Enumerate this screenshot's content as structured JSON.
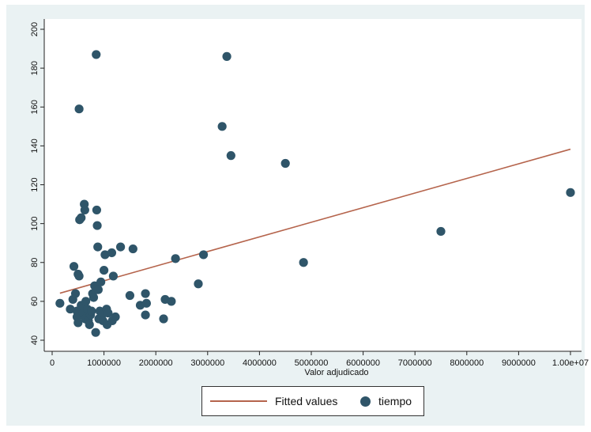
{
  "chart_data": {
    "type": "scatter",
    "title": "",
    "xlabel": "Valor adjudicado",
    "ylabel": "",
    "xlim": [
      0,
      10000000
    ],
    "ylim": [
      40,
      200
    ],
    "x_ticks": [
      {
        "value": 0,
        "label": "0"
      },
      {
        "value": 1000000,
        "label": "1000000"
      },
      {
        "value": 2000000,
        "label": "2000000"
      },
      {
        "value": 3000000,
        "label": "3000000"
      },
      {
        "value": 4000000,
        "label": "4000000"
      },
      {
        "value": 5000000,
        "label": "5000000"
      },
      {
        "value": 6000000,
        "label": "6000000"
      },
      {
        "value": 7000000,
        "label": "7000000"
      },
      {
        "value": 8000000,
        "label": "8000000"
      },
      {
        "value": 9000000,
        "label": "9000000"
      },
      {
        "value": 10000000,
        "label": "1.00e+07"
      }
    ],
    "y_ticks": [
      {
        "value": 40,
        "label": "40"
      },
      {
        "value": 60,
        "label": "60"
      },
      {
        "value": 80,
        "label": "80"
      },
      {
        "value": 100,
        "label": "100"
      },
      {
        "value": 120,
        "label": "120"
      },
      {
        "value": 140,
        "label": "140"
      },
      {
        "value": 160,
        "label": "160"
      },
      {
        "value": 180,
        "label": "180"
      },
      {
        "value": 200,
        "label": "200"
      }
    ],
    "grid": false,
    "legend_position": "bottom",
    "colors": {
      "fitted": "#b5644c",
      "points": "#2f5569",
      "axis": "#222222"
    },
    "series": [
      {
        "name": "Fitted values",
        "type": "line",
        "points": [
          [
            150000,
            64.2
          ],
          [
            10000000,
            138.3
          ]
        ]
      },
      {
        "name": "tiempo",
        "type": "scatter",
        "points": [
          [
            150000,
            59
          ],
          [
            350000,
            56
          ],
          [
            400000,
            61
          ],
          [
            420000,
            78
          ],
          [
            450000,
            64
          ],
          [
            480000,
            55
          ],
          [
            500000,
            74
          ],
          [
            520000,
            73
          ],
          [
            480000,
            52
          ],
          [
            500000,
            49
          ],
          [
            520000,
            159
          ],
          [
            530000,
            102
          ],
          [
            560000,
            103
          ],
          [
            560000,
            58
          ],
          [
            600000,
            54
          ],
          [
            620000,
            110
          ],
          [
            630000,
            107
          ],
          [
            640000,
            51
          ],
          [
            650000,
            60
          ],
          [
            680000,
            56
          ],
          [
            700000,
            50
          ],
          [
            720000,
            48
          ],
          [
            740000,
            53
          ],
          [
            760000,
            55
          ],
          [
            780000,
            64
          ],
          [
            800000,
            62
          ],
          [
            820000,
            68
          ],
          [
            840000,
            44
          ],
          [
            850000,
            187
          ],
          [
            860000,
            107
          ],
          [
            870000,
            99
          ],
          [
            880000,
            88
          ],
          [
            890000,
            66
          ],
          [
            900000,
            51
          ],
          [
            920000,
            55
          ],
          [
            940000,
            70
          ],
          [
            960000,
            53
          ],
          [
            980000,
            50
          ],
          [
            1000000,
            76
          ],
          [
            1020000,
            84
          ],
          [
            1050000,
            56
          ],
          [
            1060000,
            48
          ],
          [
            1080000,
            54
          ],
          [
            1150000,
            85
          ],
          [
            1160000,
            50
          ],
          [
            1180000,
            73
          ],
          [
            1220000,
            52
          ],
          [
            1320000,
            88
          ],
          [
            1500000,
            63
          ],
          [
            1560000,
            87
          ],
          [
            1700000,
            58
          ],
          [
            1800000,
            64
          ],
          [
            1800000,
            53
          ],
          [
            1820000,
            59
          ],
          [
            2150000,
            51
          ],
          [
            2180000,
            61
          ],
          [
            2300000,
            60
          ],
          [
            2380000,
            82
          ],
          [
            2820000,
            69
          ],
          [
            2920000,
            84
          ],
          [
            3280000,
            150
          ],
          [
            3370000,
            186
          ],
          [
            3450000,
            135
          ],
          [
            4500000,
            131
          ],
          [
            4850000,
            80
          ],
          [
            7500000,
            96
          ],
          [
            10000000,
            116
          ]
        ]
      }
    ]
  },
  "legend": {
    "fitted_label": "Fitted values",
    "points_label": "tiempo"
  }
}
